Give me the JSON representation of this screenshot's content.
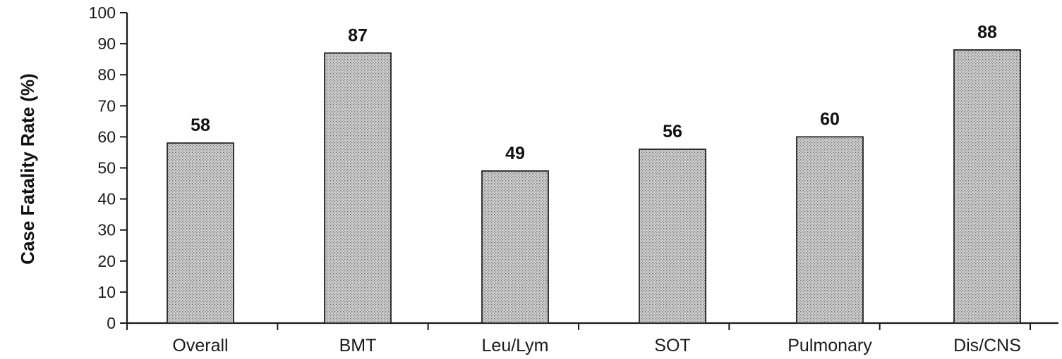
{
  "chart_data": {
    "type": "bar",
    "categories": [
      "Overall",
      "BMT",
      "Leu/Lym",
      "SOT",
      "Pulmonary",
      "Dis/CNS"
    ],
    "values": [
      58,
      87,
      49,
      56,
      60,
      88
    ],
    "data_labels": [
      "58",
      "87",
      "49",
      "56",
      "60",
      "88"
    ],
    "title": "",
    "xlabel": "",
    "ylabel": "Case Fatality Rate (%)",
    "ylim": [
      0,
      100
    ],
    "yticks": [
      0,
      10,
      20,
      30,
      40,
      50,
      60,
      70,
      80,
      90,
      100
    ],
    "grid": false,
    "legend": "none",
    "bar_fill": "stippled-gray",
    "colors": {
      "bar_base": "#cfcfcf",
      "bar_stipple": "#6e6e6e",
      "axis": "#1a1a1a"
    }
  }
}
